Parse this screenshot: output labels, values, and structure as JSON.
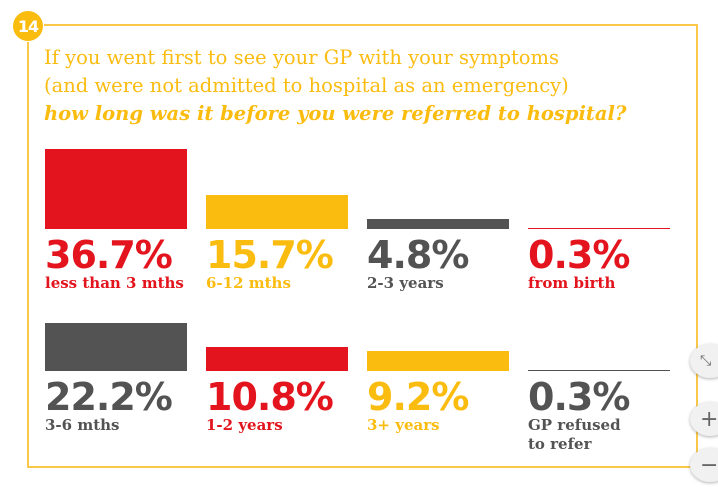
{
  "badge": "14",
  "question": {
    "line1": "If you went first to see your GP with your symptoms",
    "line2": "(and were not admitted to hospital as an emergency)",
    "line3": "how long was it before you were referred to hospital?"
  },
  "chart_data": {
    "type": "bar",
    "categories": [
      "less than 3 mths",
      "6-12 mths",
      "2-3 years",
      "from birth",
      "3-6 mths",
      "1-2 years",
      "3+ years",
      "GP refused to refer"
    ],
    "values": [
      36.7,
      15.7,
      4.8,
      0.3,
      22.2,
      10.8,
      9.2,
      0.3
    ],
    "items": [
      {
        "pct": "36.7%",
        "label": "less than 3 mths",
        "value": 36.7,
        "color": "#e3141d"
      },
      {
        "pct": "15.7%",
        "label": "6-12 mths",
        "value": 15.7,
        "color": "#fbbc10"
      },
      {
        "pct": "4.8%",
        "label": "2-3 years",
        "value": 4.8,
        "color": "#535353"
      },
      {
        "pct": "0.3%",
        "label": "from birth",
        "value": 0.3,
        "color": "#e3141d"
      },
      {
        "pct": "22.2%",
        "label": "3-6 mths",
        "value": 22.2,
        "color": "#535353"
      },
      {
        "pct": "10.8%",
        "label": "1-2 years",
        "value": 10.8,
        "color": "#e3141d"
      },
      {
        "pct": "9.2%",
        "label": "3+ years",
        "value": 9.2,
        "color": "#fbbc10"
      },
      {
        "pct": "0.3%",
        "label": "GP refused\nto refer",
        "value": 0.3,
        "color": "#535353"
      }
    ]
  },
  "zoom_controls": {
    "fit": "⤡",
    "plus": "+",
    "minus": "−"
  }
}
